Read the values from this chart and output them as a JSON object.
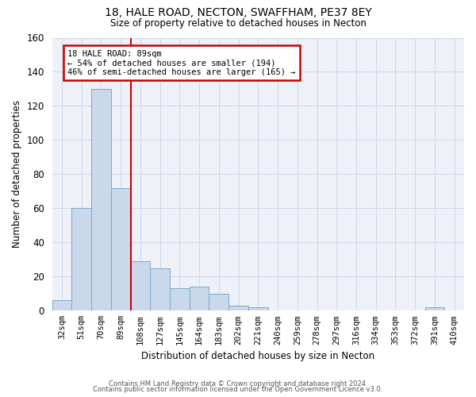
{
  "title1": "18, HALE ROAD, NECTON, SWAFFHAM, PE37 8EY",
  "title2": "Size of property relative to detached houses in Necton",
  "xlabel": "Distribution of detached houses by size in Necton",
  "ylabel": "Number of detached properties",
  "categories": [
    "32sqm",
    "51sqm",
    "70sqm",
    "89sqm",
    "108sqm",
    "127sqm",
    "145sqm",
    "164sqm",
    "183sqm",
    "202sqm",
    "221sqm",
    "240sqm",
    "259sqm",
    "278sqm",
    "297sqm",
    "316sqm",
    "334sqm",
    "353sqm",
    "372sqm",
    "391sqm",
    "410sqm"
  ],
  "values": [
    6,
    60,
    130,
    72,
    29,
    25,
    13,
    14,
    10,
    3,
    2,
    0,
    0,
    0,
    0,
    0,
    0,
    0,
    0,
    2,
    0
  ],
  "bar_color": "#c9d9eb",
  "bar_edge_color": "#7aa8cb",
  "bar_width": 1.0,
  "grid_color": "#d0d8e8",
  "bg_color": "#eef2f8",
  "red_line_index": 3,
  "annotation_title": "18 HALE ROAD: 89sqm",
  "annotation_line1": "← 54% of detached houses are smaller (194)",
  "annotation_line2": "46% of semi-detached houses are larger (165) →",
  "annotation_box_color": "#ffffff",
  "annotation_box_edge": "#cc0000",
  "red_line_color": "#cc0000",
  "ylim": [
    0,
    160
  ],
  "yticks": [
    0,
    20,
    40,
    60,
    80,
    100,
    120,
    140,
    160
  ],
  "footer1": "Contains HM Land Registry data © Crown copyright and database right 2024.",
  "footer2": "Contains public sector information licensed under the Open Government Licence v3.0."
}
